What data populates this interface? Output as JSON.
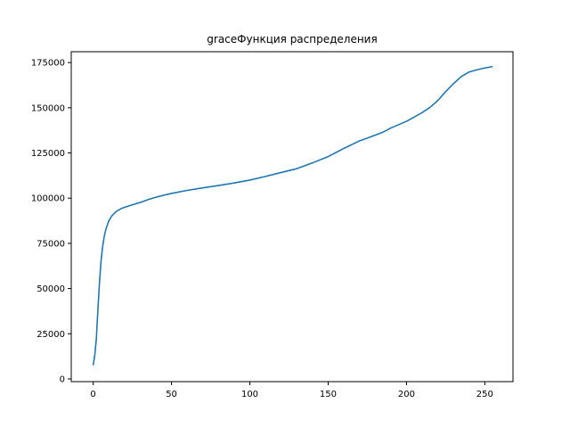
{
  "chart_data": {
    "type": "line",
    "title": "graceФункция распределения",
    "xlabel": "",
    "ylabel": "",
    "xlim": [
      -14,
      268
    ],
    "ylim": [
      -1500,
      181000
    ],
    "xticks": [
      0,
      50,
      100,
      150,
      200,
      250
    ],
    "yticks": [
      0,
      25000,
      50000,
      75000,
      100000,
      125000,
      150000,
      175000
    ],
    "ytick_labels": [
      "0",
      "25000",
      "50000",
      "75000",
      "100000",
      "125000",
      "150000",
      "175000"
    ],
    "grid": false,
    "legend": "none",
    "series": [
      {
        "color": "#1f77b4",
        "x": [
          0,
          1,
          2,
          3,
          4,
          5,
          6,
          7,
          8,
          10,
          12,
          15,
          18,
          22,
          26,
          30,
          35,
          40,
          45,
          50,
          60,
          70,
          80,
          90,
          100,
          110,
          120,
          130,
          140,
          150,
          160,
          170,
          175,
          185,
          190,
          200,
          210,
          215,
          220,
          225,
          230,
          235,
          240,
          245,
          250,
          255
        ],
        "y": [
          7500,
          13000,
          22000,
          38000,
          53000,
          65000,
          73000,
          78500,
          82500,
          87500,
          90300,
          92800,
          94300,
          95500,
          96600,
          97600,
          99200,
          100500,
          101600,
          102600,
          104300,
          105700,
          107000,
          108400,
          110000,
          112000,
          114200,
          116300,
          119500,
          123000,
          127500,
          131700,
          133200,
          136500,
          138800,
          142500,
          147300,
          150200,
          154000,
          158900,
          163300,
          167300,
          169800,
          171000,
          172000,
          172800
        ]
      }
    ]
  }
}
